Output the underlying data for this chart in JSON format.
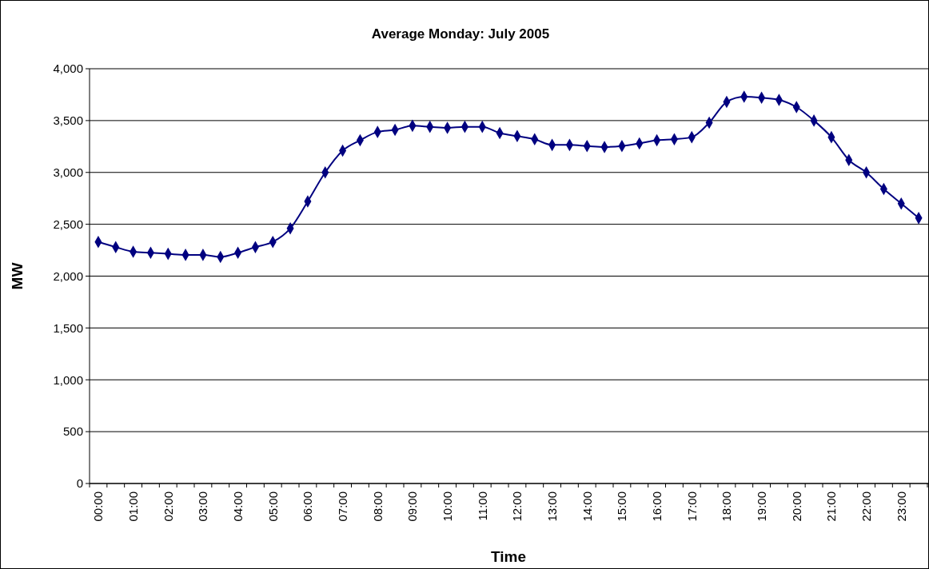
{
  "chart_data": {
    "type": "line",
    "title": "Average Monday: July  2005",
    "xlabel": "Time",
    "ylabel": "MW",
    "categories": [
      "00:00",
      null,
      "01:00",
      null,
      "02:00",
      null,
      "03:00",
      null,
      "04:00",
      null,
      "05:00",
      null,
      "06:00",
      null,
      "07:00",
      null,
      "08:00",
      null,
      "09:00",
      null,
      "10:00",
      null,
      "11:00",
      null,
      "12:00",
      null,
      "13:00",
      null,
      "14:00",
      null,
      "15:00",
      null,
      "16:00",
      null,
      "17:00",
      null,
      "18:00",
      null,
      "19:00",
      null,
      "20:00",
      null,
      "21:00",
      null,
      "22:00",
      null,
      "23:00",
      null
    ],
    "series": [
      {
        "color": "#000080",
        "values": [
          2330,
          2280,
          2235,
          2225,
          2215,
          2205,
          2205,
          2185,
          2225,
          2280,
          2330,
          2460,
          2720,
          3000,
          3210,
          3310,
          3390,
          3410,
          3450,
          3440,
          3430,
          3440,
          3440,
          3380,
          3350,
          3320,
          3265,
          3265,
          3255,
          3245,
          3255,
          3280,
          3310,
          3320,
          3340,
          3480,
          3680,
          3730,
          3720,
          3700,
          3630,
          3500,
          3340,
          3120,
          3000,
          2840,
          2700,
          2560
        ]
      }
    ],
    "ylim": [
      0,
      4000
    ],
    "yticks": [
      {
        "value": 0,
        "label": "0"
      },
      {
        "value": 500,
        "label": "500"
      },
      {
        "value": 1000,
        "label": "1,000"
      },
      {
        "value": 1500,
        "label": "1,500"
      },
      {
        "value": 2000,
        "label": "2,000"
      },
      {
        "value": 2500,
        "label": "2,500"
      },
      {
        "value": 3000,
        "label": "3,000"
      },
      {
        "value": 3500,
        "label": "3,500"
      },
      {
        "value": 4000,
        "label": "4,000"
      }
    ],
    "grid": "y",
    "marker": "diamond",
    "line_style": "solid"
  }
}
